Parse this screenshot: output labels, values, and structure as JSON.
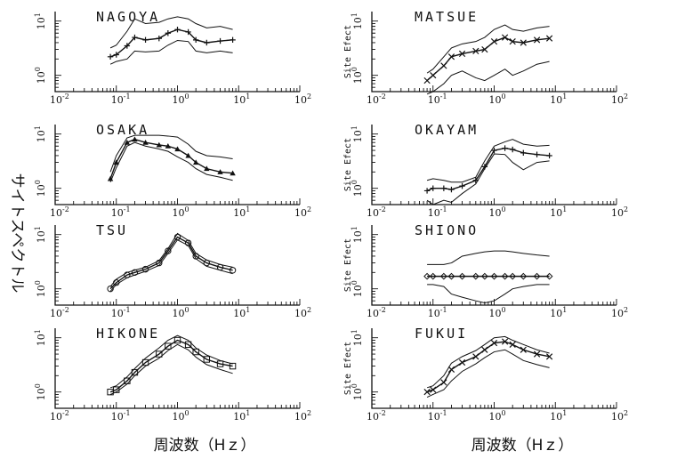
{
  "figure": {
    "left_ylabel": "サイトスペクトル",
    "xlabel_left": "周波数（Hｚ）",
    "xlabel_right": "周波数（Hｚ）",
    "panel_ylabel": "Site Efect",
    "colors": {
      "ink": "#111111",
      "background": "#ffffff"
    }
  },
  "chart_data": [
    {
      "type": "line",
      "title": "NAGOYA",
      "xscale": "log",
      "yscale": "log",
      "xlim": [
        0.01,
        100
      ],
      "ylim": [
        0.5,
        15
      ],
      "x": [
        0.08,
        0.1,
        0.15,
        0.2,
        0.3,
        0.5,
        0.7,
        1,
        1.5,
        2,
        3,
        5,
        8
      ],
      "series": [
        {
          "role": "mean",
          "marker": "plus",
          "values": [
            2.2,
            2.4,
            3.5,
            5.0,
            4.5,
            4.8,
            6.0,
            7.0,
            6.3,
            4.5,
            4.0,
            4.3,
            4.5
          ]
        },
        {
          "role": "upper",
          "values": [
            3.2,
            3.6,
            6.5,
            11.0,
            9.0,
            9.5,
            11.0,
            12.0,
            11.0,
            9.0,
            7.5,
            8.0,
            7.0
          ]
        },
        {
          "role": "lower",
          "values": [
            1.6,
            1.8,
            2.0,
            2.8,
            2.7,
            2.8,
            3.6,
            4.4,
            4.2,
            2.8,
            2.6,
            2.8,
            2.6
          ]
        }
      ],
      "xticks": [
        "10^-2",
        "10^-1",
        "10^0",
        "10^1",
        "10^2"
      ],
      "yticks": [
        "10^0",
        "10^1"
      ]
    },
    {
      "type": "line",
      "title": "MATSUE",
      "xscale": "log",
      "yscale": "log",
      "xlim": [
        0.01,
        100
      ],
      "ylim": [
        0.5,
        15
      ],
      "x": [
        0.08,
        0.1,
        0.15,
        0.2,
        0.3,
        0.5,
        0.7,
        1,
        1.5,
        2,
        3,
        5,
        8
      ],
      "series": [
        {
          "role": "mean",
          "marker": "cross",
          "values": [
            0.8,
            1.0,
            1.5,
            2.2,
            2.5,
            2.8,
            3.0,
            4.2,
            5.0,
            4.2,
            4.0,
            4.5,
            4.8
          ]
        },
        {
          "role": "upper",
          "values": [
            1.1,
            1.3,
            2.2,
            3.2,
            3.8,
            4.2,
            5.0,
            7.0,
            8.5,
            7.0,
            6.5,
            7.5,
            8.0
          ]
        },
        {
          "role": "lower",
          "values": [
            0.45,
            0.5,
            0.7,
            1.0,
            1.2,
            0.9,
            0.8,
            1.0,
            1.3,
            1.0,
            1.2,
            1.6,
            1.8
          ]
        }
      ],
      "xticks": [
        "10^-2",
        "10^-1",
        "10^0",
        "10^1",
        "10^2"
      ],
      "yticks": [
        "10^0",
        "10^1"
      ]
    },
    {
      "type": "line",
      "title": "OSAKA",
      "xscale": "log",
      "yscale": "log",
      "xlim": [
        0.01,
        100
      ],
      "ylim": [
        0.5,
        15
      ],
      "x": [
        0.08,
        0.1,
        0.15,
        0.2,
        0.3,
        0.5,
        0.7,
        1,
        1.5,
        2,
        3,
        5,
        8
      ],
      "series": [
        {
          "role": "mean",
          "marker": "triangle",
          "values": [
            1.5,
            3.0,
            7.0,
            8.0,
            7.0,
            6.3,
            6.0,
            5.3,
            4.0,
            3.0,
            2.3,
            2.0,
            1.9
          ]
        },
        {
          "role": "upper",
          "values": [
            2.0,
            4.0,
            8.5,
            9.5,
            9.5,
            9.5,
            9.2,
            8.8,
            6.5,
            4.8,
            4.0,
            3.8,
            3.5
          ]
        },
        {
          "role": "lower",
          "values": [
            1.3,
            2.4,
            6.0,
            7.0,
            6.0,
            5.3,
            4.8,
            3.8,
            3.0,
            2.3,
            1.8,
            1.6,
            1.4
          ]
        }
      ],
      "xticks": [
        "10^-2",
        "10^-1",
        "10^0",
        "10^1",
        "10^2"
      ],
      "yticks": [
        "10^0",
        "10^1"
      ]
    },
    {
      "type": "line",
      "title": "OKAYAM",
      "xscale": "log",
      "yscale": "log",
      "xlim": [
        0.01,
        100
      ],
      "ylim": [
        0.5,
        15
      ],
      "x": [
        0.08,
        0.1,
        0.15,
        0.2,
        0.3,
        0.5,
        0.7,
        1,
        1.5,
        2,
        3,
        5,
        8
      ],
      "series": [
        {
          "role": "mean",
          "marker": "plus",
          "values": [
            0.9,
            1.0,
            1.0,
            0.95,
            1.1,
            1.4,
            2.5,
            5.0,
            5.5,
            5.2,
            4.5,
            4.2,
            4.0
          ]
        },
        {
          "role": "upper",
          "values": [
            1.4,
            1.5,
            1.4,
            1.3,
            1.3,
            1.6,
            3.2,
            6.0,
            7.2,
            8.0,
            6.5,
            6.0,
            6.2
          ]
        },
        {
          "role": "lower",
          "values": [
            0.6,
            0.5,
            0.6,
            0.55,
            0.8,
            1.2,
            2.3,
            4.3,
            4.2,
            3.0,
            2.2,
            3.0,
            3.2
          ]
        }
      ],
      "xticks": [
        "10^-2",
        "10^-1",
        "10^0",
        "10^1",
        "10^2"
      ],
      "yticks": [
        "10^0",
        "10^1"
      ]
    },
    {
      "type": "line",
      "title": "TSU",
      "xscale": "log",
      "yscale": "log",
      "xlim": [
        0.01,
        100
      ],
      "ylim": [
        0.5,
        15
      ],
      "x": [
        0.08,
        0.1,
        0.15,
        0.2,
        0.3,
        0.5,
        0.7,
        1,
        1.5,
        2,
        3,
        5,
        8
      ],
      "series": [
        {
          "role": "mean",
          "marker": "circle",
          "values": [
            1.0,
            1.3,
            1.8,
            2.0,
            2.3,
            3.0,
            5.0,
            9.0,
            7.0,
            4.0,
            3.0,
            2.5,
            2.2
          ]
        },
        {
          "role": "upper",
          "values": [
            1.1,
            1.5,
            2.0,
            2.2,
            2.5,
            3.3,
            5.5,
            10.5,
            7.8,
            4.5,
            3.4,
            2.8,
            2.5
          ]
        },
        {
          "role": "lower",
          "values": [
            0.9,
            1.2,
            1.6,
            1.8,
            2.1,
            2.7,
            4.5,
            8.0,
            6.3,
            3.6,
            2.6,
            2.2,
            1.9
          ]
        }
      ],
      "xticks": [
        "10^-2",
        "10^-1",
        "10^0",
        "10^1",
        "10^2"
      ],
      "yticks": [
        "10^0",
        "10^1"
      ]
    },
    {
      "type": "line",
      "title": "SHIONO",
      "xscale": "log",
      "yscale": "log",
      "xlim": [
        0.01,
        100
      ],
      "ylim": [
        0.5,
        15
      ],
      "x": [
        0.08,
        0.1,
        0.15,
        0.2,
        0.3,
        0.5,
        0.7,
        1,
        1.5,
        2,
        3,
        5,
        8
      ],
      "series": [
        {
          "role": "mean",
          "marker": "diamond",
          "values": [
            1.7,
            1.7,
            1.7,
            1.7,
            1.7,
            1.7,
            1.7,
            1.7,
            1.7,
            1.7,
            1.7,
            1.7,
            1.7
          ]
        },
        {
          "role": "upper",
          "values": [
            2.8,
            2.8,
            2.8,
            3.0,
            4.0,
            4.5,
            4.8,
            5.0,
            5.0,
            4.8,
            4.5,
            4.2,
            4.0
          ]
        },
        {
          "role": "lower",
          "values": [
            1.2,
            1.2,
            1.1,
            0.8,
            0.7,
            0.6,
            0.55,
            0.6,
            0.8,
            1.0,
            1.1,
            1.2,
            1.2
          ]
        }
      ],
      "xticks": [
        "10^-2",
        "10^-1",
        "10^0",
        "10^1",
        "10^2"
      ],
      "yticks": [
        "10^0",
        "10^1"
      ]
    },
    {
      "type": "line",
      "title": "HIKONE",
      "xscale": "log",
      "yscale": "log",
      "xlim": [
        0.01,
        100
      ],
      "ylim": [
        0.5,
        15
      ],
      "x": [
        0.08,
        0.1,
        0.15,
        0.2,
        0.3,
        0.5,
        0.7,
        1,
        1.5,
        2,
        3,
        5,
        8
      ],
      "series": [
        {
          "role": "mean",
          "marker": "square",
          "values": [
            1.0,
            1.1,
            1.6,
            2.3,
            3.5,
            5.0,
            7.0,
            9.0,
            7.5,
            5.5,
            4.0,
            3.3,
            3.0
          ]
        },
        {
          "role": "upper",
          "values": [
            1.2,
            1.3,
            1.9,
            2.7,
            4.2,
            6.5,
            9.0,
            11.0,
            9.0,
            6.5,
            4.8,
            3.8,
            3.3
          ]
        },
        {
          "role": "lower",
          "values": [
            0.9,
            1.0,
            1.4,
            2.0,
            3.0,
            4.2,
            5.8,
            7.5,
            6.0,
            4.4,
            3.2,
            2.6,
            2.2
          ]
        }
      ],
      "xticks": [
        "10^-2",
        "10^-1",
        "10^0",
        "10^1",
        "10^2"
      ],
      "yticks": [
        "10^0",
        "10^1"
      ]
    },
    {
      "type": "line",
      "title": "FUKUI",
      "xscale": "log",
      "yscale": "log",
      "xlim": [
        0.01,
        100
      ],
      "ylim": [
        0.5,
        15
      ],
      "x": [
        0.08,
        0.1,
        0.15,
        0.2,
        0.3,
        0.5,
        0.7,
        1,
        1.5,
        2,
        3,
        5,
        8
      ],
      "series": [
        {
          "role": "mean",
          "marker": "cross",
          "values": [
            1.0,
            1.1,
            1.5,
            2.6,
            3.5,
            4.5,
            6.0,
            8.0,
            8.5,
            7.5,
            6.0,
            5.0,
            4.5
          ]
        },
        {
          "role": "upper",
          "values": [
            1.2,
            1.3,
            2.0,
            3.4,
            4.5,
            5.8,
            7.5,
            10.0,
            10.5,
            9.0,
            7.5,
            6.0,
            5.2
          ]
        },
        {
          "role": "lower",
          "values": [
            0.8,
            0.9,
            1.1,
            1.6,
            2.4,
            3.3,
            4.3,
            5.5,
            6.0,
            5.0,
            3.8,
            3.2,
            2.8
          ]
        }
      ],
      "xticks": [
        "10^-2",
        "10^-1",
        "10^0",
        "10^1",
        "10^2"
      ],
      "yticks": [
        "10^0",
        "10^1"
      ]
    }
  ]
}
